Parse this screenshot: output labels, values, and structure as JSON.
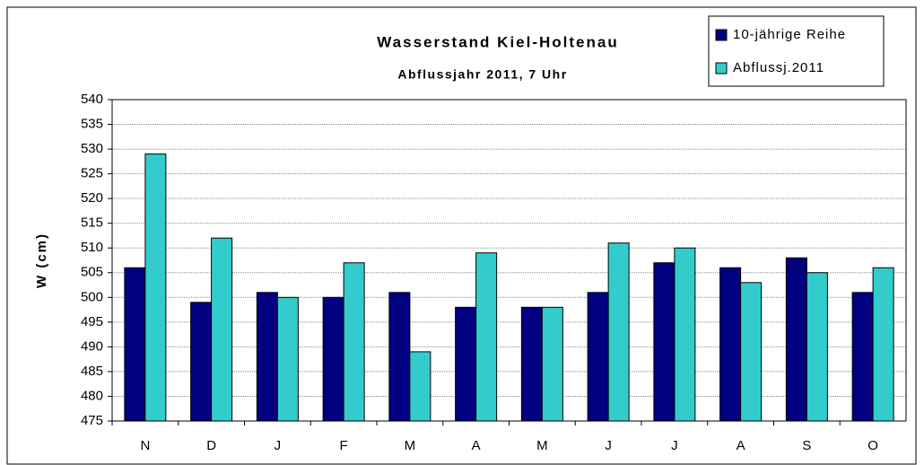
{
  "chart_data": {
    "type": "bar",
    "title": "Wasserstand Kiel-Holtenau",
    "subtitle": "Abflussjahr 2011, 7 Uhr",
    "y_label": "W (cm)",
    "categories": [
      "N",
      "D",
      "J",
      "F",
      "M",
      "A",
      "M",
      "J",
      "J",
      "A",
      "S",
      "O"
    ],
    "series": [
      {
        "name": "10-jährige Reihe",
        "color": "#000080",
        "values": [
          506,
          499,
          501,
          500,
          501,
          498,
          498,
          501,
          507,
          506,
          508,
          501
        ]
      },
      {
        "name": "Abflussj.2011",
        "color": "#33cccc",
        "values": [
          529,
          512,
          500,
          507,
          489,
          509,
          498,
          511,
          510,
          503,
          505,
          506
        ]
      }
    ],
    "ylim": [
      475,
      540
    ],
    "yticks": [
      475,
      480,
      485,
      490,
      495,
      500,
      505,
      510,
      515,
      520,
      525,
      530,
      535,
      540
    ],
    "grid": true,
    "legend": "top-right"
  }
}
